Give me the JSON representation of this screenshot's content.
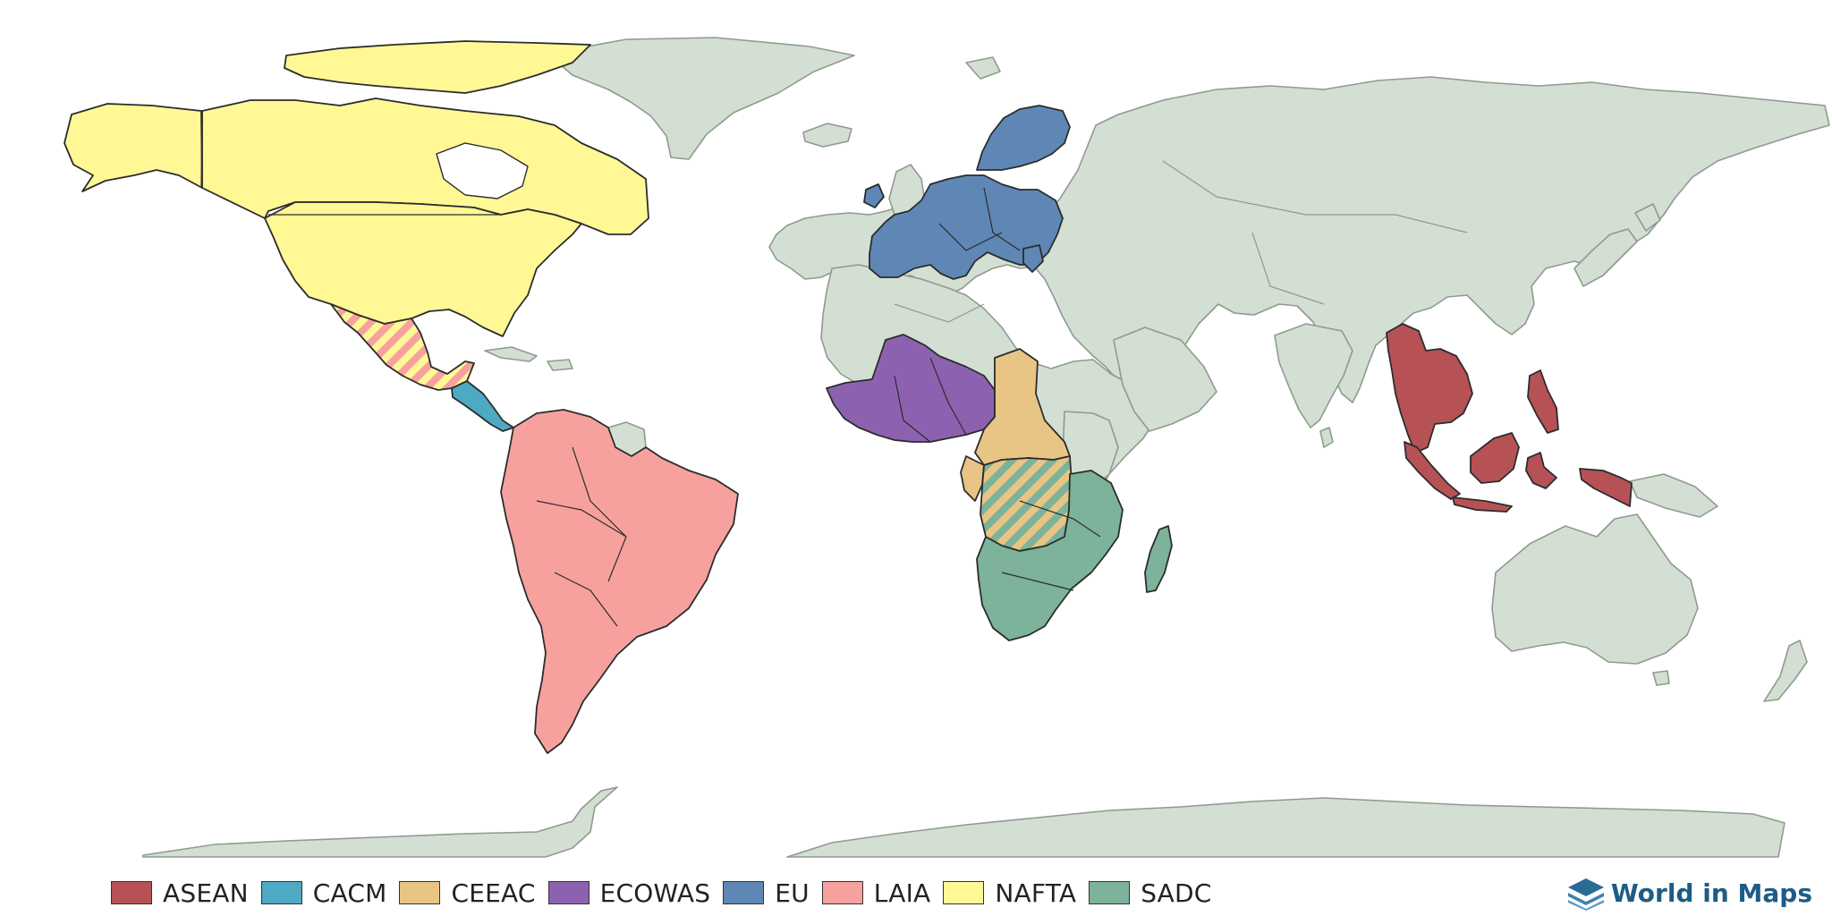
{
  "map": {
    "background_color": "#ffffff",
    "non_member_fill": "#d4dfd4",
    "hatch_overlaps": [
      {
        "region": "Mexico",
        "blocs": [
          "LAIA",
          "NAFTA"
        ]
      },
      {
        "region": "Central Africa",
        "blocs": [
          "CEEAC",
          "SADC"
        ]
      }
    ]
  },
  "legend": {
    "items": [
      {
        "label": "ASEAN",
        "color": "#b65255"
      },
      {
        "label": "CACM",
        "color": "#4ea9c3"
      },
      {
        "label": "CEEAC",
        "color": "#e8c585"
      },
      {
        "label": "ECOWAS",
        "color": "#8c62b0"
      },
      {
        "label": "EU",
        "color": "#5f87b5"
      },
      {
        "label": "LAIA",
        "color": "#f7a19f"
      },
      {
        "label": "NAFTA",
        "color": "#fff895"
      },
      {
        "label": "SADC",
        "color": "#7cb39a"
      }
    ]
  },
  "brand": {
    "text": "World in Maps",
    "icon": "layers-icon"
  }
}
